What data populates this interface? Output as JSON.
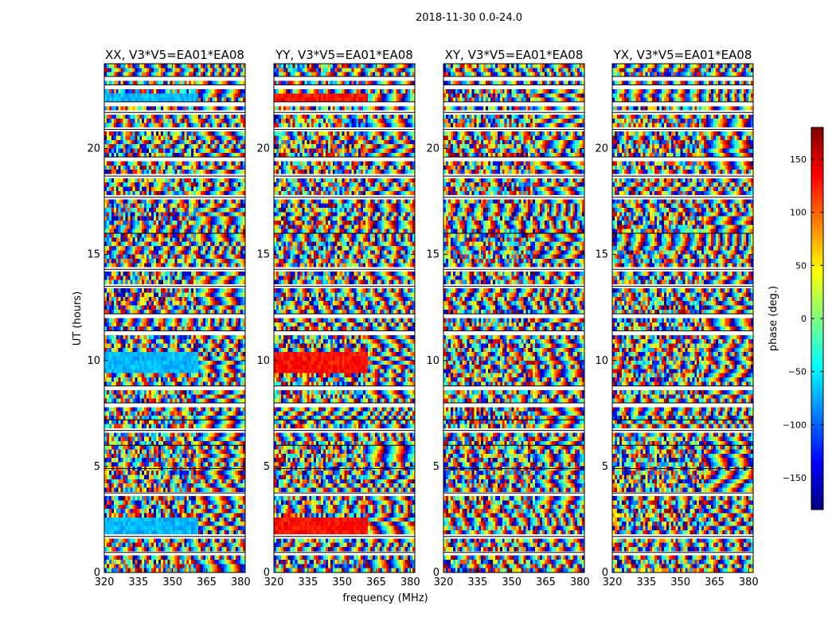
{
  "suptitle": "2018-11-30 0.0-24.0",
  "ylabel": "UT (hours)",
  "xlabel": "frequency (MHz)",
  "colorbar_label": "phase (deg.)",
  "colorbar_ticks": [
    -150,
    -100,
    -50,
    0,
    50,
    100,
    150
  ],
  "colorbar_range": [
    -180,
    180
  ],
  "colormap": [
    "#00007f",
    "#0000ff",
    "#007fff",
    "#00ffff",
    "#7fff7f",
    "#ffff00",
    "#ff7f00",
    "#ff0000",
    "#7f0000"
  ],
  "chart_data": {
    "type": "heatmap",
    "panels": [
      {
        "title": "XX, V3*V5=EA01*EA08",
        "pol": "XX",
        "smooth_phase": -70
      },
      {
        "title": "YY, V3*V5=EA01*EA08",
        "pol": "YY",
        "smooth_phase": 130
      },
      {
        "title": "XY, V3*V5=EA01*EA08",
        "pol": "XY",
        "smooth_phase": null
      },
      {
        "title": "YX, V3*V5=EA01*EA08",
        "pol": "YX",
        "smooth_phase": null
      }
    ],
    "xlim": [
      320,
      382
    ],
    "ylim": [
      0,
      24
    ],
    "xticks": [
      320,
      335,
      350,
      365,
      380
    ],
    "yticks": [
      0,
      5,
      10,
      15,
      20
    ],
    "xtick_labels": [
      "320",
      "335",
      "350",
      "365",
      "380"
    ],
    "ytick_labels": [
      "0",
      "5",
      "10",
      "15",
      "20"
    ],
    "smooth_freq_range": [
      320,
      361
    ],
    "smooth_time_ranges": [
      [
        1.8,
        2.6
      ],
      [
        9.4,
        10.4
      ],
      [
        22.3,
        22.6
      ]
    ],
    "flagged_time_ranges": [
      [
        0.85,
        0.95
      ],
      [
        1.6,
        1.7
      ],
      [
        3.6,
        3.75
      ],
      [
        4.8,
        4.9
      ],
      [
        5.9,
        6.0
      ],
      [
        6.6,
        6.7
      ],
      [
        7.1,
        7.2
      ],
      [
        7.9,
        8.0
      ],
      [
        8.7,
        8.8
      ],
      [
        11.2,
        11.4
      ],
      [
        12.1,
        12.2
      ],
      [
        13.4,
        13.5
      ],
      [
        14.2,
        14.3
      ],
      [
        15.9,
        16.0
      ],
      [
        17.6,
        17.7
      ],
      [
        18.6,
        18.7
      ],
      [
        19.4,
        19.6
      ],
      [
        20.8,
        20.9
      ],
      [
        21.6,
        21.7
      ],
      [
        22.0,
        22.2
      ],
      [
        22.9,
        23.0
      ],
      [
        23.3,
        23.4
      ]
    ],
    "heatmap_cols": 60,
    "heatmap_rows": 120,
    "value_range": [
      -180,
      180
    ],
    "value_unit": "deg"
  }
}
